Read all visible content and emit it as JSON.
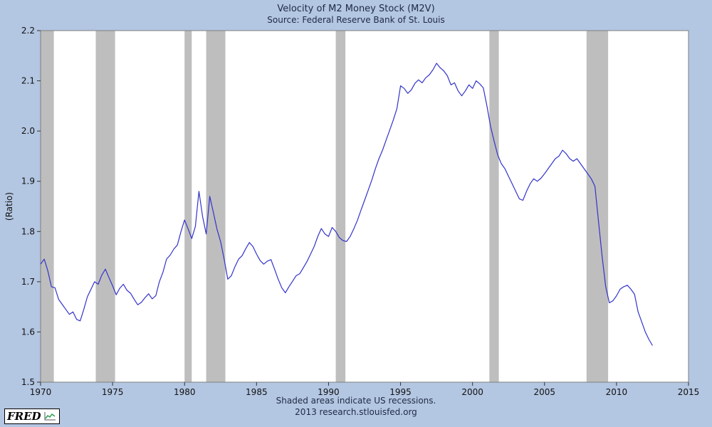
{
  "header": {
    "title": "Velocity of M2 Money Stock (M2V)",
    "subtitle": "Source: Federal Reserve Bank of St. Louis"
  },
  "footer": {
    "note": "Shaded areas indicate US recessions.",
    "credit": "2013 research.stlouisfed.org"
  },
  "logo": {
    "text": "FRED",
    "icon": "line-chart-icon"
  },
  "chart_data": {
    "type": "line",
    "title": "Velocity of M2 Money Stock (M2V)",
    "subtitle": "Source: Federal Reserve Bank of St. Louis",
    "xlabel": "",
    "ylabel": "(Ratio)",
    "xlim": [
      1970,
      2015
    ],
    "ylim": [
      1.5,
      2.2
    ],
    "grid": false,
    "legend": "none",
    "line_color": "#3333cc",
    "recession_color": "#bebebe",
    "plot_background": "#ffffff",
    "page_background": "#b3c6e2",
    "x_ticks": [
      {
        "v": 1970,
        "label": "1970"
      },
      {
        "v": 1975,
        "label": "1975"
      },
      {
        "v": 1980,
        "label": "1980"
      },
      {
        "v": 1985,
        "label": "1985"
      },
      {
        "v": 1990,
        "label": "1990"
      },
      {
        "v": 1995,
        "label": "1995"
      },
      {
        "v": 2000,
        "label": "2000"
      },
      {
        "v": 2005,
        "label": "2005"
      },
      {
        "v": 2010,
        "label": "2010"
      },
      {
        "v": 2015,
        "label": "2015"
      }
    ],
    "y_ticks": [
      {
        "v": 1.5,
        "label": "1.5"
      },
      {
        "v": 1.6,
        "label": "1.6"
      },
      {
        "v": 1.7,
        "label": "1.7"
      },
      {
        "v": 1.8,
        "label": "1.8"
      },
      {
        "v": 1.9,
        "label": "1.9"
      },
      {
        "v": 2.0,
        "label": "2.0"
      },
      {
        "v": 2.1,
        "label": "2.1"
      },
      {
        "v": 2.2,
        "label": "2.2"
      }
    ],
    "recessions": [
      [
        1970.0,
        1970.92
      ],
      [
        1973.83,
        1975.17
      ],
      [
        1980.0,
        1980.5
      ],
      [
        1981.5,
        1982.83
      ],
      [
        1990.5,
        1991.17
      ],
      [
        2001.17,
        2001.83
      ],
      [
        2007.92,
        2009.42
      ]
    ],
    "series": [
      {
        "name": "M2V",
        "frequency": "quarterly",
        "x_start": 1970.0,
        "x_step": 0.25,
        "values": [
          1.735,
          1.745,
          1.722,
          1.69,
          1.688,
          1.665,
          1.655,
          1.645,
          1.635,
          1.64,
          1.625,
          1.622,
          1.645,
          1.67,
          1.685,
          1.7,
          1.695,
          1.713,
          1.725,
          1.708,
          1.692,
          1.674,
          1.687,
          1.695,
          1.683,
          1.677,
          1.665,
          1.654,
          1.659,
          1.668,
          1.676,
          1.666,
          1.672,
          1.7,
          1.719,
          1.745,
          1.753,
          1.765,
          1.773,
          1.8,
          1.823,
          1.805,
          1.786,
          1.81,
          1.88,
          1.83,
          1.795,
          1.87,
          1.838,
          1.805,
          1.78,
          1.745,
          1.705,
          1.712,
          1.73,
          1.745,
          1.752,
          1.766,
          1.778,
          1.77,
          1.755,
          1.742,
          1.735,
          1.741,
          1.744,
          1.725,
          1.705,
          1.688,
          1.678,
          1.69,
          1.701,
          1.712,
          1.716,
          1.728,
          1.74,
          1.755,
          1.77,
          1.79,
          1.806,
          1.795,
          1.79,
          1.808,
          1.8,
          1.788,
          1.782,
          1.78,
          1.79,
          1.805,
          1.822,
          1.842,
          1.862,
          1.882,
          1.902,
          1.925,
          1.945,
          1.962,
          1.982,
          2.002,
          2.022,
          2.045,
          2.09,
          2.085,
          2.075,
          2.082,
          2.095,
          2.102,
          2.096,
          2.106,
          2.112,
          2.122,
          2.135,
          2.126,
          2.12,
          2.11,
          2.092,
          2.096,
          2.08,
          2.07,
          2.08,
          2.092,
          2.085,
          2.1,
          2.094,
          2.086,
          2.05,
          2.01,
          1.98,
          1.952,
          1.935,
          1.925,
          1.91,
          1.895,
          1.88,
          1.865,
          1.862,
          1.88,
          1.895,
          1.905,
          1.9,
          1.906,
          1.915,
          1.925,
          1.935,
          1.945,
          1.95,
          1.962,
          1.955,
          1.945,
          1.94,
          1.945,
          1.935,
          1.925,
          1.915,
          1.905,
          1.89,
          1.82,
          1.75,
          1.69,
          1.658,
          1.662,
          1.672,
          1.685,
          1.69,
          1.693,
          1.685,
          1.675,
          1.64,
          1.62,
          1.6,
          1.585,
          1.573
        ]
      }
    ]
  }
}
